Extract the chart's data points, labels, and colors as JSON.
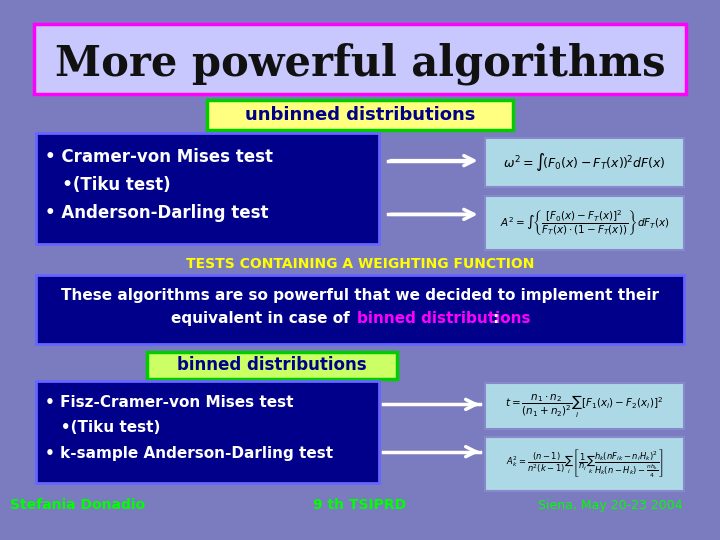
{
  "title": "More powerful algorithms",
  "bg_color": "#7b7bbf",
  "title_bg": "#c8c8ff",
  "title_border": "#ff00ff",
  "unbinned_label": "unbinned distributions",
  "unbinned_bg": "#ffff80",
  "unbinned_border": "#00cc00",
  "bullet_box_bg": "#00008b",
  "bullet_box_border": "#6666ff",
  "bullet_text_color": "#ffffff",
  "bullets_unbinned": [
    "• Cramer-von Mises test",
    "   •(Tiku test)",
    "• Anderson-Darling test"
  ],
  "formula_box_bg": "#add8e6",
  "formula_box_border": "#8888cc",
  "weighting_label": "TESTS CONTAINING A WEIGHTING FUNCTION",
  "weighting_color": "#ffff00",
  "paragraph_box_bg": "#00008b",
  "paragraph_box_border": "#6666ff",
  "paragraph_text": "These algorithms are so powerful that we decided to implement their\nequivalent in case of ",
  "paragraph_highlight": "binned distributions",
  "paragraph_highlight_color": "#ff00ff",
  "paragraph_end": ":",
  "paragraph_text_color": "#ffffff",
  "binned_label": "binned distributions",
  "binned_bg": "#ccff66",
  "binned_border": "#00cc00",
  "bullets_binned": [
    "• Fisz-Cramer-von Mises test",
    "   •(Tiku test)",
    "• k-sample Anderson-Darling test"
  ],
  "footer_left": "Stefania Donadio",
  "footer_mid": "9 th TSIPRD",
  "footer_right": "Siena, May 20-23 2004",
  "footer_color": "#00ff00",
  "arrow_color": "#ffffff"
}
